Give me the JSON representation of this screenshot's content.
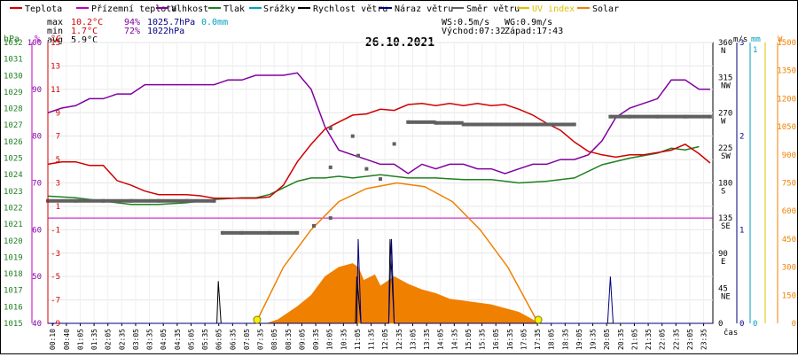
{
  "chart_data": {
    "type": "line",
    "title": "26.10.2021",
    "legend": [
      {
        "label": "Teplota",
        "color": "#d00000"
      },
      {
        "label": "Přízemní teplota",
        "color": "#c000c0"
      },
      {
        "label": "Vlhkost",
        "color": "#8000a0"
      },
      {
        "label": "Tlak",
        "color": "#208020"
      },
      {
        "label": "Srážky",
        "color": "#00a0c0"
      },
      {
        "label": "Rychlost větru",
        "color": "#000000"
      },
      {
        "label": "Náraz větru",
        "color": "#000080"
      },
      {
        "label": "Směr větru",
        "color": "#606060"
      },
      {
        "label": "UV index",
        "color": "#e0c000"
      },
      {
        "label": "Solar",
        "color": "#f08000"
      }
    ],
    "stats": {
      "max_label": "max",
      "max_temp": "10.2°C",
      "max_hum": "94%",
      "max_press": "1025.7hPa",
      "max_rain": "0.0mm",
      "min_label": "min",
      "min_temp": "1.7°C",
      "min_hum": "72%",
      "min_press": "1022hPa",
      "avg_label": "avg",
      "avg_temp": "5.9°C",
      "ws": "WS:0.5m/s",
      "wg": "WG:0.9m/s",
      "sunrise": "Východ:07:32",
      "sunset": "Západ:17:43"
    },
    "axes_left": {
      "press_unit": "hPa",
      "press_ticks": [
        "1032",
        "1031",
        "1030",
        "1029",
        "1028",
        "1027",
        "1026",
        "1025",
        "1024",
        "1023",
        "1022",
        "1021",
        "1020",
        "1019",
        "1018",
        "1017",
        "1016",
        "1015"
      ],
      "hum_unit": "%",
      "hum_ticks": [
        "100",
        "90",
        "80",
        "70",
        "60",
        "50",
        "40"
      ],
      "temp_unit": "°C",
      "temp_ticks": [
        "15",
        "13",
        "11",
        "9",
        "7",
        "5",
        "3",
        "1",
        "-1",
        "-3",
        "-5",
        "-7",
        "-9"
      ]
    },
    "axes_right": {
      "dir_ticks": [
        {
          "deg": "360",
          "lbl": "N"
        },
        {
          "deg": "315",
          "lbl": "NW"
        },
        {
          "deg": "270",
          "lbl": "W"
        },
        {
          "deg": "225",
          "lbl": "SW"
        },
        {
          "deg": "180",
          "lbl": "S"
        },
        {
          "deg": "135",
          "lbl": "SE"
        },
        {
          "deg": "90",
          "lbl": "E"
        },
        {
          "deg": "45",
          "lbl": "NE"
        },
        {
          "deg": "0",
          "lbl": ""
        }
      ],
      "wind_unit": "m/s",
      "wind_ticks": [
        "3",
        "2",
        "1",
        "0"
      ],
      "rain_unit": "mm",
      "rain_ticks": [
        "1",
        "0"
      ],
      "solar_unit": "W",
      "solar_ticks": [
        "1500",
        "1350",
        "1200",
        "1050",
        "900",
        "750",
        "600",
        "450",
        "300",
        "150",
        "0"
      ]
    },
    "x_unit": "čas",
    "x_ticks": [
      "00:10",
      "00:40",
      "01:05",
      "01:35",
      "02:05",
      "02:35",
      "03:05",
      "03:35",
      "04:05",
      "04:35",
      "05:05",
      "05:35",
      "06:05",
      "06:35",
      "07:05",
      "07:35",
      "08:05",
      "08:35",
      "09:05",
      "09:35",
      "10:05",
      "10:35",
      "11:05",
      "11:35",
      "12:05",
      "12:35",
      "13:05",
      "13:35",
      "14:05",
      "14:35",
      "15:05",
      "15:35",
      "16:05",
      "16:35",
      "17:05",
      "17:35",
      "18:05",
      "18:35",
      "19:05",
      "19:35",
      "20:05",
      "20:35",
      "21:05",
      "21:35",
      "22:05",
      "22:35",
      "23:05",
      "23:35"
    ],
    "ranges": {
      "hours": [
        0,
        24
      ],
      "temp": [
        -9,
        15
      ],
      "humidity": [
        40,
        100
      ],
      "pressure": [
        1015,
        1032
      ],
      "wind": [
        0,
        3
      ],
      "direction": [
        0,
        360
      ],
      "solar": [
        0,
        1500
      ]
    },
    "series": {
      "temperature": [
        [
          0,
          4.6
        ],
        [
          0.5,
          4.8
        ],
        [
          1,
          4.8
        ],
        [
          1.5,
          4.5
        ],
        [
          2,
          4.5
        ],
        [
          2.5,
          3.2
        ],
        [
          3,
          2.8
        ],
        [
          3.5,
          2.3
        ],
        [
          4,
          2.0
        ],
        [
          4.5,
          2.0
        ],
        [
          5,
          2.0
        ],
        [
          5.5,
          1.9
        ],
        [
          6,
          1.7
        ],
        [
          6.5,
          1.7
        ],
        [
          7,
          1.7
        ],
        [
          7.5,
          1.7
        ],
        [
          8,
          1.8
        ],
        [
          8.5,
          2.8
        ],
        [
          9,
          4.8
        ],
        [
          9.5,
          6.3
        ],
        [
          10,
          7.6
        ],
        [
          10.5,
          8.2
        ],
        [
          11,
          8.8
        ],
        [
          11.5,
          8.9
        ],
        [
          12,
          9.3
        ],
        [
          12.5,
          9.2
        ],
        [
          13,
          9.7
        ],
        [
          13.5,
          9.8
        ],
        [
          14,
          9.6
        ],
        [
          14.5,
          9.8
        ],
        [
          15,
          9.6
        ],
        [
          15.5,
          9.8
        ],
        [
          16,
          9.6
        ],
        [
          16.5,
          9.7
        ],
        [
          17,
          9.3
        ],
        [
          17.5,
          8.8
        ],
        [
          18,
          8.1
        ],
        [
          18.5,
          7.5
        ],
        [
          19,
          6.5
        ],
        [
          19.5,
          5.7
        ],
        [
          20,
          5.4
        ],
        [
          20.5,
          5.2
        ],
        [
          21,
          5.4
        ],
        [
          21.5,
          5.4
        ],
        [
          22,
          5.6
        ],
        [
          22.5,
          5.8
        ],
        [
          23,
          6.3
        ],
        [
          23.5,
          5.5
        ],
        [
          23.9,
          4.7
        ]
      ],
      "humidity": [
        [
          0,
          85
        ],
        [
          0.5,
          86
        ],
        [
          1,
          86.5
        ],
        [
          1.5,
          88
        ],
        [
          2,
          88
        ],
        [
          2.5,
          89
        ],
        [
          3,
          89
        ],
        [
          3.5,
          91
        ],
        [
          4,
          91
        ],
        [
          4.5,
          91
        ],
        [
          5,
          91
        ],
        [
          5.5,
          91
        ],
        [
          6,
          91
        ],
        [
          6.5,
          92
        ],
        [
          7,
          92
        ],
        [
          7.5,
          93
        ],
        [
          8,
          93
        ],
        [
          8.5,
          93
        ],
        [
          9,
          93.5
        ],
        [
          9.5,
          90
        ],
        [
          10,
          82
        ],
        [
          10.5,
          77
        ],
        [
          11,
          76
        ],
        [
          11.5,
          75
        ],
        [
          12,
          74
        ],
        [
          12.5,
          74
        ],
        [
          13,
          72
        ],
        [
          13.5,
          74
        ],
        [
          14,
          73
        ],
        [
          14.5,
          74
        ],
        [
          15,
          74
        ],
        [
          15.5,
          73
        ],
        [
          16,
          73
        ],
        [
          16.5,
          72
        ],
        [
          17,
          73
        ],
        [
          17.5,
          74
        ],
        [
          18,
          74
        ],
        [
          18.5,
          75
        ],
        [
          19,
          75
        ],
        [
          19.5,
          76
        ],
        [
          20,
          79
        ],
        [
          20.5,
          84
        ],
        [
          21,
          86
        ],
        [
          21.5,
          87
        ],
        [
          22,
          88
        ],
        [
          22.5,
          92
        ],
        [
          23,
          92
        ],
        [
          23.5,
          90
        ],
        [
          23.9,
          90
        ]
      ],
      "pressure": [
        [
          0,
          1022.7
        ],
        [
          1,
          1022.6
        ],
        [
          2,
          1022.4
        ],
        [
          3,
          1022.2
        ],
        [
          4,
          1022.2
        ],
        [
          5,
          1022.3
        ],
        [
          6,
          1022.5
        ],
        [
          7,
          1022.6
        ],
        [
          7.5,
          1022.6
        ],
        [
          8,
          1022.8
        ],
        [
          8.5,
          1023.2
        ],
        [
          9,
          1023.6
        ],
        [
          9.5,
          1023.8
        ],
        [
          10,
          1023.8
        ],
        [
          10.5,
          1023.9
        ],
        [
          11,
          1023.8
        ],
        [
          12,
          1024.0
        ],
        [
          13,
          1023.8
        ],
        [
          14,
          1023.8
        ],
        [
          15,
          1023.7
        ],
        [
          16,
          1023.7
        ],
        [
          17,
          1023.5
        ],
        [
          18,
          1023.6
        ],
        [
          19,
          1023.8
        ],
        [
          20,
          1024.6
        ],
        [
          21,
          1025.0
        ],
        [
          22,
          1025.3
        ],
        [
          22.5,
          1025.6
        ],
        [
          23,
          1025.5
        ],
        [
          23.5,
          1025.7
        ]
      ],
      "wind_direction": [
        [
          0,
          157
        ],
        [
          1,
          157
        ],
        [
          2,
          157
        ],
        [
          3,
          157
        ],
        [
          4,
          157
        ],
        [
          5,
          157
        ],
        [
          6,
          157
        ],
        [
          6.3,
          116
        ],
        [
          7,
          116
        ],
        [
          8,
          116
        ],
        [
          9,
          116
        ],
        [
          9.6,
          125
        ],
        [
          10.2,
          135
        ],
        [
          10.2,
          200
        ],
        [
          10.2,
          250
        ],
        [
          11,
          240
        ],
        [
          11.2,
          215
        ],
        [
          11.5,
          198
        ],
        [
          12,
          185
        ],
        [
          12.5,
          230
        ],
        [
          13,
          258
        ],
        [
          14,
          257
        ],
        [
          15,
          255
        ],
        [
          16,
          255
        ],
        [
          17,
          255
        ],
        [
          18,
          255
        ],
        [
          19,
          255
        ],
        [
          20.3,
          265
        ],
        [
          21,
          265
        ],
        [
          22,
          265
        ],
        [
          23,
          265
        ],
        [
          23.9,
          265
        ]
      ],
      "wind_speed": [
        [
          0,
          0
        ],
        [
          6.1,
          0
        ],
        [
          6.15,
          0.45
        ],
        [
          6.25,
          0
        ],
        [
          11.1,
          0
        ],
        [
          11.15,
          0.5
        ],
        [
          11.3,
          0
        ],
        [
          12.3,
          0
        ],
        [
          12.35,
          0.9
        ],
        [
          12.5,
          0
        ],
        [
          24,
          0
        ]
      ],
      "wind_gust": [
        [
          0,
          0
        ],
        [
          11.15,
          0
        ],
        [
          11.2,
          0.9
        ],
        [
          11.3,
          0
        ],
        [
          12.3,
          0
        ],
        [
          12.4,
          0.9
        ],
        [
          12.5,
          0
        ],
        [
          20.2,
          0
        ],
        [
          20.3,
          0.5
        ],
        [
          20.4,
          0
        ],
        [
          24,
          0
        ]
      ],
      "solar": [
        [
          7.9,
          0
        ],
        [
          8.3,
          20
        ],
        [
          9,
          90
        ],
        [
          9.5,
          150
        ],
        [
          10,
          250
        ],
        [
          10.5,
          300
        ],
        [
          11,
          320
        ],
        [
          11.2,
          300
        ],
        [
          11.4,
          230
        ],
        [
          11.8,
          260
        ],
        [
          12,
          200
        ],
        [
          12.5,
          250
        ],
        [
          13,
          210
        ],
        [
          13.5,
          180
        ],
        [
          14,
          160
        ],
        [
          14.5,
          130
        ],
        [
          15,
          120
        ],
        [
          15.5,
          110
        ],
        [
          16,
          100
        ],
        [
          16.5,
          80
        ],
        [
          17,
          60
        ],
        [
          17.5,
          20
        ],
        [
          17.7,
          0
        ]
      ],
      "solar_max": [
        [
          7.5,
          0
        ],
        [
          8.5,
          300
        ],
        [
          9.5,
          500
        ],
        [
          10.5,
          650
        ],
        [
          11.5,
          720
        ],
        [
          12.6,
          750
        ],
        [
          13.6,
          730
        ],
        [
          14.6,
          650
        ],
        [
          15.6,
          500
        ],
        [
          16.6,
          300
        ],
        [
          17.7,
          0
        ]
      ],
      "uv_markers": [
        [
          7.55,
          0
        ],
        [
          17.7,
          0
        ]
      ]
    }
  }
}
